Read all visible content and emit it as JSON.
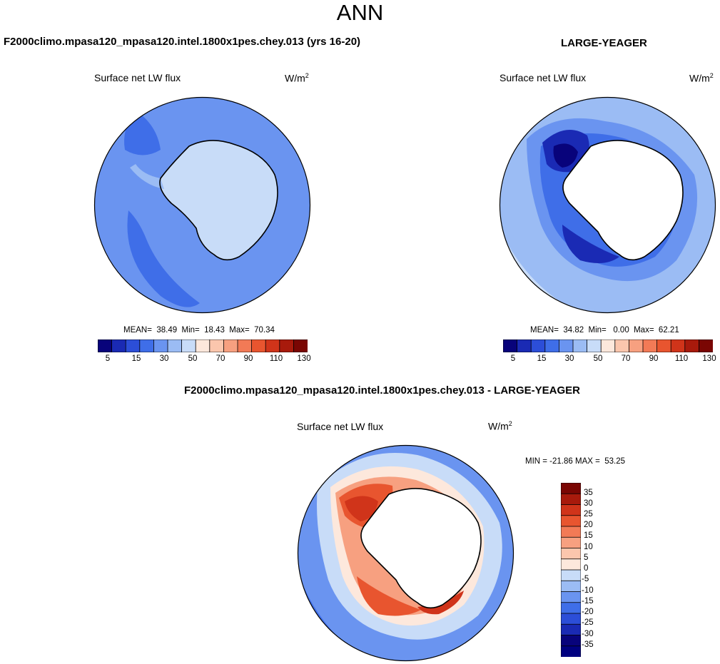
{
  "page": {
    "title": "ANN"
  },
  "map_data": {
    "type": "polar_contour_map",
    "projection": "south polar stereographic",
    "region": "Antarctica / Southern Ocean",
    "variable": "Surface net LW flux",
    "units_label": "W/m",
    "units_power": "2",
    "panels": [
      {
        "title": "F2000climo.mpasa120_mpasa120.intel.1800x1pes.chey.013 (yrs 16-20)",
        "variable": "Surface net LW flux",
        "units": "W/m",
        "units_power": "2",
        "stats_text": "MEAN=  38.49  Min=  18.43  Max=  70.34",
        "mean": 38.49,
        "min": 18.43,
        "max": 70.34,
        "colorbar_ticks": [
          "5",
          "15",
          "30",
          "50",
          "70",
          "90",
          "110",
          "130"
        ]
      },
      {
        "title": "LARGE-YEAGER",
        "variable": "Surface net LW flux",
        "units": "W/m",
        "units_power": "2",
        "stats_text": "MEAN=  34.82  Min=   0.00  Max=  62.21",
        "mean": 34.82,
        "min": 0.0,
        "max": 62.21,
        "colorbar_ticks": [
          "5",
          "15",
          "30",
          "50",
          "70",
          "90",
          "110",
          "130"
        ]
      },
      {
        "title": "F2000climo.mpasa120_mpasa120.intel.1800x1pes.chey.013 - LARGE-YEAGER",
        "variable": "Surface net LW flux",
        "units": "W/m",
        "units_power": "2",
        "stats_text": "MIN = -21.86 MAX =  53.25",
        "min": -21.86,
        "max": 53.25,
        "colorbar_ticks": [
          "35",
          "30",
          "25",
          "20",
          "15",
          "10",
          "5",
          "0",
          "-5",
          "-10",
          "-15",
          "-20",
          "-25",
          "-30",
          "-35"
        ]
      }
    ],
    "abs_colors": [
      "#08037b",
      "#1a2ab4",
      "#2c4ed8",
      "#3f6ee8",
      "#6a94f0",
      "#9bbcf4",
      "#c8dcf8",
      "#fde8dc",
      "#fbc6ad",
      "#f7a080",
      "#f27a56",
      "#e8552f",
      "#d0341a",
      "#a81a0c",
      "#7a0603"
    ],
    "diff_colors": [
      "#7a0603",
      "#a81a0c",
      "#d0341a",
      "#e8552f",
      "#f27a56",
      "#f7a080",
      "#fbc6ad",
      "#fde8dc",
      "#c8dcf8",
      "#9bbcf4",
      "#6a94f0",
      "#3f6ee8",
      "#2c4ed8",
      "#1a2ab4",
      "#08037b",
      "#000080"
    ]
  }
}
